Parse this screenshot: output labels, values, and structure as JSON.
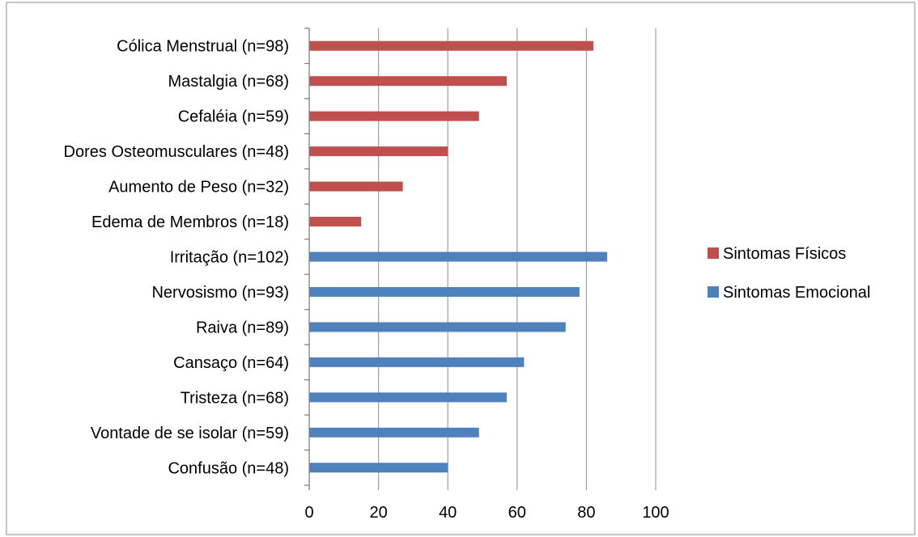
{
  "chart_data": {
    "type": "bar",
    "orientation": "horizontal",
    "title": "",
    "xlabel": "",
    "ylabel": "",
    "xlim": [
      0,
      100
    ],
    "x_ticks": [
      "0",
      "20",
      "40",
      "60",
      "80",
      "100"
    ],
    "grid": "vertical major gridlines",
    "legend_position": "right",
    "colors": {
      "fisicos": "#c0504d",
      "emocional": "#4f81bd",
      "grid": "#a6a6a6",
      "axis": "#808080"
    },
    "categories": [
      "Cólica Menstrual (n=98)",
      "Mastalgia (n=68)",
      "Cefaléia (n=59)",
      "Dores Osteomusculares (n=48)",
      "Aumento de Peso (n=32)",
      "Edema de Membros (n=18)",
      "Irritação (n=102)",
      "Nervosismo (n=93)",
      "Raiva (n=89)",
      "Cansaço (n=64)",
      "Tristeza (n=68)",
      "Vontade de se isolar (n=59)",
      "Confusão (n=48)"
    ],
    "series": [
      {
        "name": "Sintomas Físicos",
        "color": "#c0504d",
        "values": [
          82,
          57,
          49,
          40,
          27,
          15,
          null,
          null,
          null,
          null,
          null,
          null,
          null
        ]
      },
      {
        "name": "Sintomas Emocional",
        "color": "#4f81bd",
        "values": [
          null,
          null,
          null,
          null,
          null,
          null,
          86,
          78,
          74,
          62,
          57,
          49,
          40
        ]
      }
    ]
  }
}
